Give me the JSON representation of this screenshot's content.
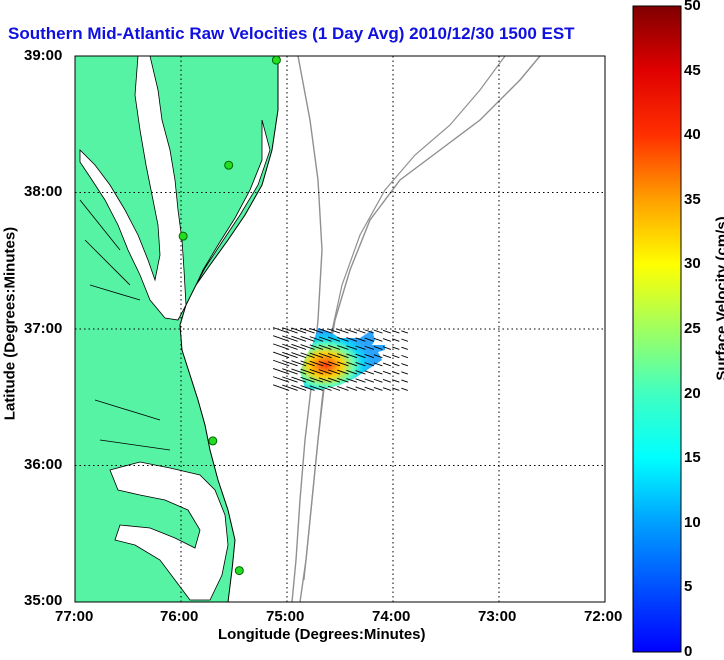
{
  "title": "Southern Mid-Atlantic Raw Velocities (1 Day Avg) 2010/12/30 1500 EST",
  "xlabel": "Longitude (Degrees:Minutes)",
  "ylabel": "Latitude (Degrees:Minutes)",
  "x_ticks": [
    "77:00",
    "76:00",
    "75:00",
    "74:00",
    "73:00",
    "72:00"
  ],
  "y_ticks": [
    "39:00",
    "38:00",
    "37:00",
    "36:00",
    "35:00"
  ],
  "colorbar": {
    "label": "Surface Velocity (cm/s)",
    "ticks": [
      "0",
      "5",
      "10",
      "15",
      "20",
      "25",
      "30",
      "35",
      "40",
      "45",
      "50"
    ],
    "range": [
      0,
      50
    ]
  },
  "colors": {
    "land": "#55f3a3",
    "coastline": "#000000",
    "bathymetry": "#909090",
    "title": "#1010e0",
    "station": "#22dd22"
  },
  "stations": [
    {
      "lon": -75.1,
      "lat": 38.97
    },
    {
      "lon": -75.55,
      "lat": 38.2
    },
    {
      "lon": -75.98,
      "lat": 37.68
    },
    {
      "lon": -75.7,
      "lat": 36.18
    },
    {
      "lon": -75.45,
      "lat": 35.23
    }
  ],
  "velocity_field": {
    "lon_range": [
      -74.98,
      -73.8
    ],
    "lat_range": [
      36.55,
      37.0
    ]
  }
}
